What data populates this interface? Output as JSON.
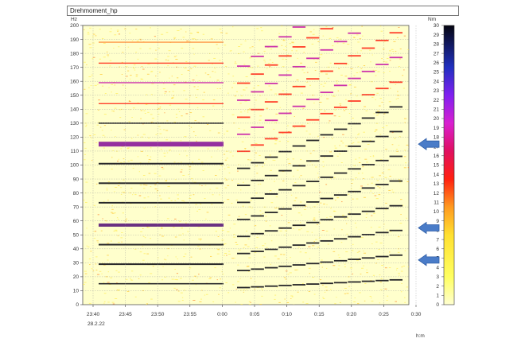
{
  "window": {
    "title": "Drehmoment_hp"
  },
  "chart_data": {
    "type": "heatmap",
    "title": "Drehmoment_hp",
    "y_unit": "Hz",
    "x_unit": "h:m",
    "date_label": "28.2.22",
    "colorbar_unit": "Nm",
    "ylim": [
      0,
      200
    ],
    "y_ticks": [
      "0",
      "10",
      "20",
      "30",
      "40",
      "50",
      "60",
      "70",
      "80",
      "90",
      "100",
      "110",
      "120",
      "130",
      "140",
      "150",
      "160",
      "170",
      "180",
      "190",
      "200"
    ],
    "x_ticks": [
      "23:40",
      "23:45",
      "23:50",
      "23:55",
      "0:00",
      "0:05",
      "0:10",
      "0:15",
      "0:20",
      "0:25",
      "0:30"
    ],
    "colorbar_range": [
      0,
      30
    ],
    "colorbar_ticks": [
      "0",
      "1",
      "2",
      "3",
      "4",
      "5",
      "6",
      "7",
      "8",
      "9",
      "10",
      "11",
      "12",
      "13",
      "14",
      "15",
      "16",
      "17",
      "18",
      "19",
      "20",
      "21",
      "22",
      "23",
      "24",
      "25",
      "26",
      "27",
      "28",
      "29",
      "30"
    ],
    "grid": true,
    "colors": {
      "background": "#ffffcc",
      "low": "#ffe94a",
      "mid": "#ff2a1a",
      "high": "#c81ea8",
      "peak": "#101018",
      "arrow": "#4a7cc8"
    },
    "annotations": [
      {
        "type": "arrow",
        "points_to_hz": 115
      },
      {
        "type": "arrow",
        "points_to_hz": 55
      },
      {
        "type": "arrow",
        "points_to_hz": 32
      }
    ]
  }
}
